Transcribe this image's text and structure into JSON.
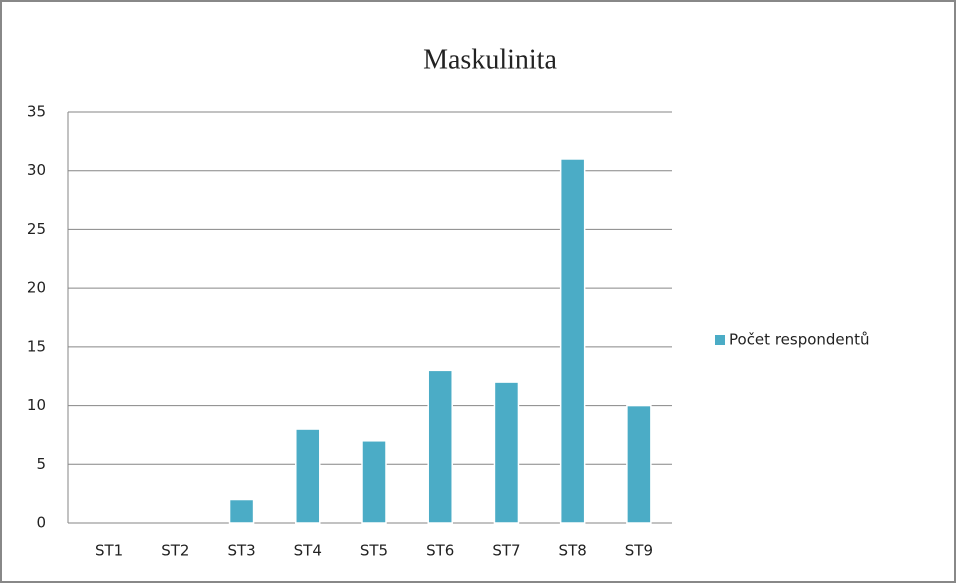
{
  "chart_data": {
    "type": "bar",
    "title": "Maskulinita",
    "categories": [
      "ST1",
      "ST2",
      "ST3",
      "ST4",
      "ST5",
      "ST6",
      "ST7",
      "ST8",
      "ST9"
    ],
    "series": [
      {
        "name": "Počet respondentů",
        "color": "#4bacc6",
        "values": [
          0,
          0,
          2,
          8,
          7,
          13,
          12,
          31,
          10
        ]
      }
    ],
    "ylim": [
      0,
      35
    ],
    "yticks": [
      0,
      5,
      10,
      15,
      20,
      25,
      30,
      35
    ],
    "grid": true,
    "legend": "right"
  }
}
